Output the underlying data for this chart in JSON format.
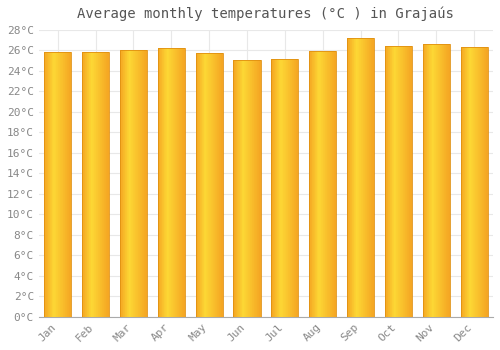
{
  "title": "Average monthly temperatures (°C ) in Grajaús",
  "months": [
    "Jan",
    "Feb",
    "Mar",
    "Apr",
    "May",
    "Jun",
    "Jul",
    "Aug",
    "Sep",
    "Oct",
    "Nov",
    "Dec"
  ],
  "values": [
    25.8,
    25.8,
    26.0,
    26.2,
    25.7,
    25.0,
    25.1,
    25.9,
    27.2,
    26.4,
    26.6,
    26.3
  ],
  "bar_color_left": "#F5A623",
  "bar_color_center": "#FDD835",
  "bar_color_right": "#F5A623",
  "bar_edge_color": "#E09010",
  "background_color": "#FFFFFF",
  "grid_color": "#E8E8E8",
  "ylim": [
    0,
    28
  ],
  "ytick_step": 2,
  "title_fontsize": 10,
  "tick_fontsize": 8,
  "text_color": "#888888",
  "title_color": "#555555"
}
